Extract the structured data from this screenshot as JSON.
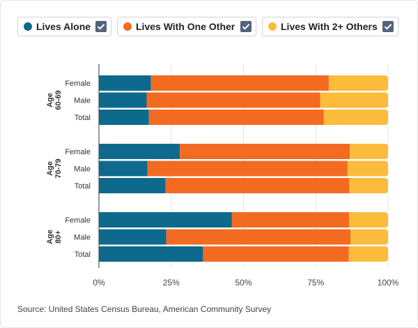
{
  "legend": {
    "items": [
      {
        "label": "Lives Alone",
        "color": "#0e6a8c",
        "checked": true
      },
      {
        "label": "Lives With One Other",
        "color": "#f26b21",
        "checked": true
      },
      {
        "label": "Lives With 2+ Others",
        "color": "#fbbc3c",
        "checked": true
      }
    ]
  },
  "source": "Source: United States Census Bureau, American Community Survey",
  "chart_data": {
    "type": "bar",
    "orientation": "horizontal",
    "stacked": "percent",
    "xlim": [
      0,
      100
    ],
    "x_ticks": [
      "0%",
      "25%",
      "50%",
      "75%",
      "100%"
    ],
    "grid": true,
    "legend_position": "top",
    "groups": [
      {
        "label": "Age 60-69",
        "label_lines": [
          "Age",
          "60-69"
        ],
        "categories": [
          "Female",
          "Male",
          "Total"
        ]
      },
      {
        "label": "Age 70-79",
        "label_lines": [
          "Age",
          "70-79"
        ],
        "categories": [
          "Female",
          "Male",
          "Total"
        ]
      },
      {
        "label": "Age 80+",
        "label_lines": [
          "Age",
          "80+"
        ],
        "categories": [
          "Female",
          "Male",
          "Total"
        ]
      }
    ],
    "series": [
      {
        "name": "Lives Alone",
        "color": "#0e6a8c",
        "values": [
          [
            18,
            16.5,
            17.3
          ],
          [
            28,
            16.8,
            23
          ],
          [
            46,
            23.3,
            36
          ]
        ]
      },
      {
        "name": "Lives With One Other",
        "color": "#f26b21",
        "values": [
          [
            61.5,
            60,
            60.5
          ],
          [
            58.8,
            69.2,
            63.6
          ],
          [
            40.5,
            63.7,
            50.4
          ]
        ]
      },
      {
        "name": "Lives With 2+ Others",
        "color": "#fbbc3c",
        "values": [
          [
            20.5,
            23.5,
            22.2
          ],
          [
            13.2,
            14,
            13.4
          ],
          [
            13.5,
            13,
            13.6
          ]
        ]
      }
    ]
  }
}
